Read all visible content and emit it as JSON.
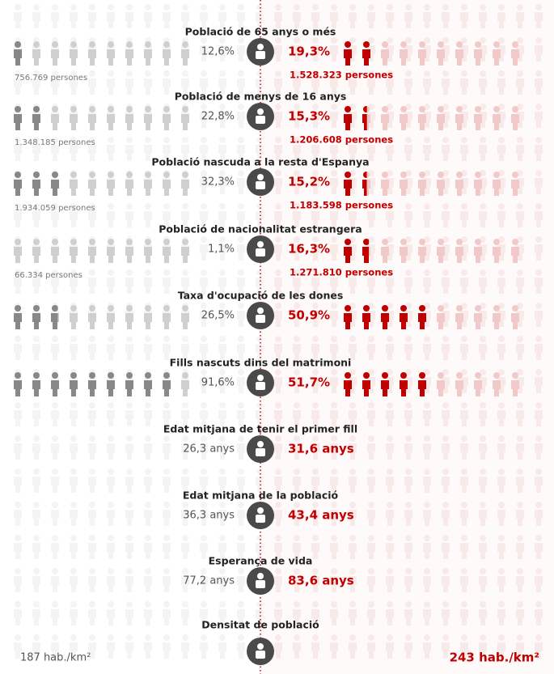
{
  "rows": [
    {
      "title": "Població de 65 anys o més",
      "left": {
        "value": 12.6,
        "label": "12,6%",
        "persons": "756.769 persones"
      },
      "right": {
        "value": 19.3,
        "label": "19,3%",
        "persons": "1.528.323 persones"
      }
    },
    {
      "title": "Població de menys de 16 anys",
      "left": {
        "value": 22.8,
        "label": "22,8%",
        "persons": "1.348.185 persones"
      },
      "right": {
        "value": 15.3,
        "label": "15,3%",
        "persons": "1.206.608 persones"
      }
    },
    {
      "title": "Població nascuda a la resta d'Espanya",
      "left": {
        "value": 32.3,
        "label": "32,3%",
        "persons": "1.934.059 persones"
      },
      "right": {
        "value": 15.2,
        "label": "15,2%",
        "persons": "1.183.598 persones"
      }
    },
    {
      "title": "Població de nacionalitat estrangera",
      "left": {
        "value": 1.1,
        "label": "1,1%",
        "persons": "66.334 persones"
      },
      "right": {
        "value": 16.3,
        "label": "16,3%",
        "persons": "1.271.810 persones"
      }
    },
    {
      "title": "Taxa d'ocupació de les dones",
      "left": {
        "value": 26.5,
        "label": "26,5%"
      },
      "right": {
        "value": 50.9,
        "label": "50,9%"
      }
    },
    {
      "title": "Fills nascuts dins del matrimoni",
      "left": {
        "value": 91.6,
        "label": "91,6%"
      },
      "right": {
        "value": 51.7,
        "label": "51,7%"
      }
    },
    {
      "title": "Edat mitjana de tenir el primer fill",
      "left": {
        "label": "26,3 anys"
      },
      "right": {
        "label": "31,6 anys"
      }
    },
    {
      "title": "Edat mitjana de la població",
      "left": {
        "label": "36,3 anys"
      },
      "right": {
        "label": "43,4 anys"
      }
    },
    {
      "title": "Esperança de vida",
      "left": {
        "label": "77,2 anys"
      },
      "right": {
        "label": "83,6 anys"
      }
    },
    {
      "title": "Densitat de població",
      "left": {
        "label": "187 hab./km²"
      },
      "right": {
        "label": "243 hab./km²"
      }
    }
  ]
}
